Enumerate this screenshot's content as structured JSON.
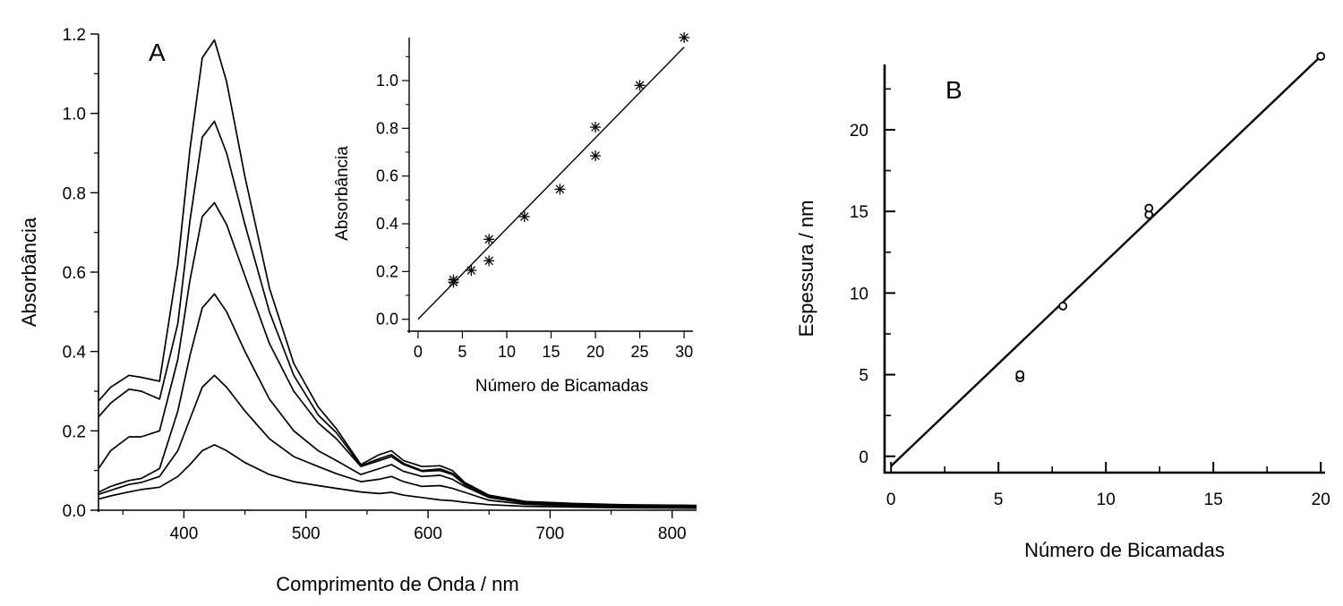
{
  "chart_data": [
    {
      "panel": "A",
      "type": "line",
      "xlabel": "Comprimento de Onda  /  nm",
      "ylabel": "Absorbância",
      "xlim": [
        330,
        820
      ],
      "ylim": [
        0.0,
        1.2
      ],
      "xticks": [
        400,
        500,
        600,
        700,
        800
      ],
      "yticks": [
        0.0,
        0.2,
        0.4,
        0.6,
        0.8,
        1.0,
        1.2
      ],
      "xtick_labels": [
        "400",
        "500",
        "600",
        "700",
        "800"
      ],
      "ytick_labels": [
        "0.0",
        "0.2",
        "0.4",
        "0.6",
        "0.8",
        "1.0",
        "1.2"
      ],
      "grid": false,
      "x": [
        330,
        340,
        355,
        365,
        380,
        395,
        405,
        415,
        425,
        435,
        450,
        470,
        490,
        510,
        525,
        545,
        560,
        570,
        580,
        595,
        610,
        620,
        630,
        650,
        680,
        720,
        760,
        820
      ],
      "series": [
        {
          "values": [
            0.028,
            0.036,
            0.046,
            0.052,
            0.058,
            0.085,
            0.115,
            0.15,
            0.165,
            0.15,
            0.12,
            0.09,
            0.072,
            0.062,
            0.055,
            0.046,
            0.042,
            0.045,
            0.038,
            0.032,
            0.026,
            0.024,
            0.02,
            0.014,
            0.01,
            0.008,
            0.006,
            0.005
          ]
        },
        {
          "values": [
            0.04,
            0.05,
            0.065,
            0.07,
            0.085,
            0.15,
            0.23,
            0.31,
            0.34,
            0.31,
            0.25,
            0.18,
            0.135,
            0.11,
            0.092,
            0.072,
            0.078,
            0.085,
            0.072,
            0.06,
            0.062,
            0.055,
            0.045,
            0.025,
            0.015,
            0.011,
            0.009,
            0.008
          ]
        },
        {
          "values": [
            0.045,
            0.06,
            0.075,
            0.08,
            0.105,
            0.25,
            0.39,
            0.51,
            0.545,
            0.5,
            0.4,
            0.28,
            0.2,
            0.15,
            0.125,
            0.09,
            0.105,
            0.115,
            0.098,
            0.085,
            0.088,
            0.078,
            0.06,
            0.032,
            0.018,
            0.013,
            0.011,
            0.01
          ]
        },
        {
          "values": [
            0.105,
            0.15,
            0.185,
            0.185,
            0.2,
            0.38,
            0.58,
            0.74,
            0.775,
            0.72,
            0.59,
            0.42,
            0.3,
            0.22,
            0.18,
            0.11,
            0.125,
            0.135,
            0.115,
            0.098,
            0.1,
            0.09,
            0.065,
            0.034,
            0.02,
            0.015,
            0.012,
            0.011
          ]
        },
        {
          "values": [
            0.235,
            0.27,
            0.305,
            0.3,
            0.28,
            0.47,
            0.73,
            0.94,
            0.98,
            0.9,
            0.72,
            0.5,
            0.34,
            0.24,
            0.195,
            0.112,
            0.13,
            0.14,
            0.118,
            0.1,
            0.104,
            0.093,
            0.068,
            0.036,
            0.021,
            0.016,
            0.013,
            0.012
          ]
        },
        {
          "values": [
            0.275,
            0.31,
            0.34,
            0.335,
            0.325,
            0.62,
            0.91,
            1.14,
            1.185,
            1.08,
            0.84,
            0.56,
            0.37,
            0.26,
            0.205,
            0.115,
            0.14,
            0.15,
            0.125,
            0.11,
            0.112,
            0.1,
            0.07,
            0.038,
            0.022,
            0.017,
            0.014,
            0.012
          ]
        }
      ]
    },
    {
      "panel": "A-inset",
      "type": "scatter",
      "xlabel": "Número de Bicamadas",
      "ylabel": "Absorbância",
      "xlim": [
        -1,
        31
      ],
      "ylim": [
        -0.05,
        1.18
      ],
      "xticks": [
        0,
        5,
        10,
        15,
        20,
        25,
        30
      ],
      "yticks": [
        0.0,
        0.2,
        0.4,
        0.6,
        0.8,
        1.0
      ],
      "xtick_labels": [
        "0",
        "5",
        "10",
        "15",
        "20",
        "25",
        "30"
      ],
      "ytick_labels": [
        "0.0",
        "0.2",
        "0.4",
        "0.6",
        "0.8",
        "1.0"
      ],
      "grid": false,
      "marker": "asterisk",
      "points": {
        "x": [
          4,
          4,
          6,
          8,
          8,
          12,
          16,
          20,
          20,
          25,
          30
        ],
        "y": [
          0.165,
          0.155,
          0.205,
          0.335,
          0.245,
          0.43,
          0.545,
          0.805,
          0.685,
          0.98,
          1.18
        ]
      },
      "fit_line": {
        "x": [
          0,
          30
        ],
        "y": [
          0.0,
          1.14
        ]
      }
    },
    {
      "panel": "B",
      "type": "scatter",
      "xlabel": "Número de Bicamadas",
      "ylabel": "Espessura  /  nm",
      "xlim": [
        -0.3,
        20.2
      ],
      "ylim": [
        -1.0,
        24.0
      ],
      "xticks": [
        0,
        5,
        10,
        15,
        20
      ],
      "yticks": [
        0,
        5,
        10,
        15,
        20
      ],
      "xtick_labels": [
        "0",
        "5",
        "10",
        "15",
        "20"
      ],
      "ytick_labels": [
        "0",
        "5",
        "10",
        "15",
        "20"
      ],
      "grid": false,
      "marker": "circle",
      "points": {
        "x": [
          6,
          6,
          8,
          12,
          12,
          20
        ],
        "y": [
          4.8,
          5.0,
          9.2,
          14.8,
          15.2,
          24.5
        ]
      },
      "fit_line": {
        "x": [
          0,
          20
        ],
        "y": [
          -0.6,
          24.5
        ]
      }
    }
  ],
  "labels": {
    "panel_a": "A",
    "panel_b": "B"
  }
}
